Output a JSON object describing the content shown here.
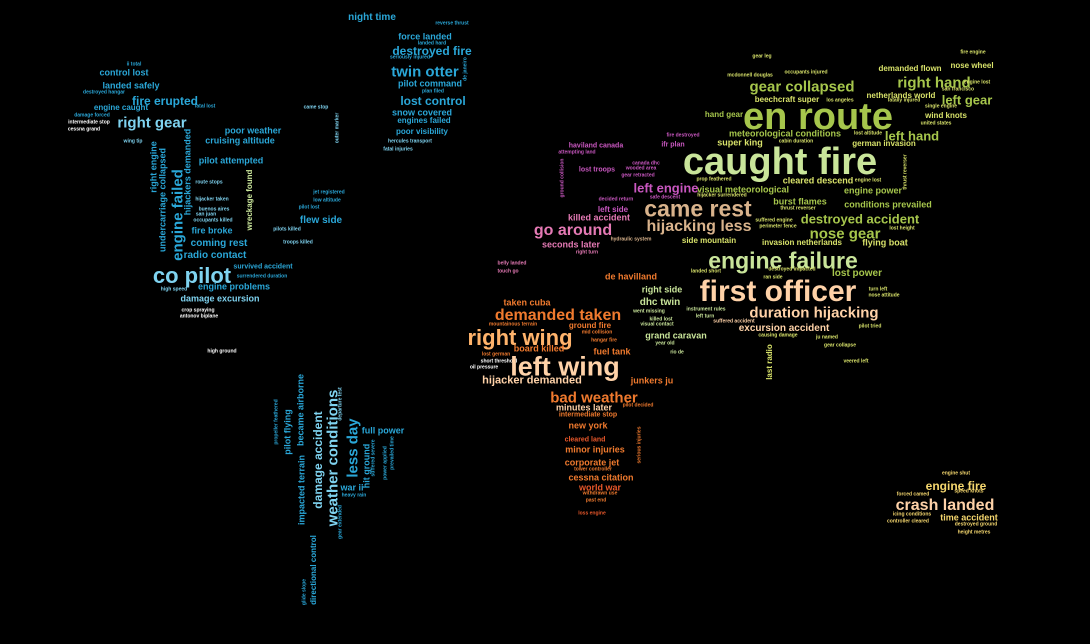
{
  "colors": {
    "background": "#000000",
    "blue": "#2aa7d8",
    "lightblue": "#7fd3f0",
    "white": "#ffffff",
    "green": "#a6c64c",
    "lightgreen": "#c9e59a",
    "yellowgreen": "#d8e26a",
    "purple": "#c957c0",
    "pink": "#e57ab5",
    "tan": "#d9b38c",
    "orange": "#f07a2e",
    "lightorange": "#ffb36b",
    "peach": "#ffd2a8",
    "yellow": "#f5d76e",
    "darkorange": "#e8572a"
  },
  "words": {
    "w1": "night time",
    "w2": "reverse thrust",
    "w3": "force landed",
    "w4": "landed hard",
    "w5": "destroyed fire",
    "w6": "seriously injured",
    "w7": "twin otter",
    "w8": "de janeiro",
    "w9": "pilot command",
    "w10": "plan filed",
    "w11": "lost control",
    "w12": "snow covered",
    "w13": "engines failed",
    "w14": "poor visibility",
    "w15": "hercules transport",
    "w16": "fatal injuries",
    "w17": "outer marker",
    "w18": "came stop",
    "w19": "control lost",
    "w20": "landed safely",
    "w21": "destroyed hangar",
    "w22": "fire erupted",
    "w23": "engine caught",
    "w24": "fatal lost",
    "w25": "damage forced",
    "w26": "right gear",
    "w27": "intermediate stop",
    "w28": "cessna grand",
    "w29": "poor weather",
    "w30": "cruising altitude",
    "w31": "wing tip",
    "w32": "right engine",
    "w33": "undercarriage collapsed",
    "w34": "engine failed",
    "w35": "hijackers demanded",
    "w36": "pilot attempted",
    "w37": "route stops",
    "w38": "hijacker taken",
    "w39": "buenos aires",
    "w40": "san juan",
    "w41": "occupants killed",
    "w42": "wreckage found",
    "w43": "jet registered",
    "w44": "low altitude",
    "w45": "pilot lost",
    "w46": "flew side",
    "w47": "fire broke",
    "w48": "pilots killed",
    "w49": "coming rest",
    "w50": "troops killed",
    "w51": "radio contact",
    "w52": "co pilot",
    "w53": "survived accident",
    "w54": "surrendered duration",
    "w55": "engine problems",
    "w56": "high speed",
    "w57": "damage excursion",
    "w58": "crop spraying",
    "w59": "antonov biplane",
    "w60": "high ground",
    "w61": "propeller feathered",
    "w62": "pilot flying",
    "w63": "impacted terrain",
    "w64": "became airborne",
    "w65": "damage accident",
    "w66": "weather conditions",
    "w67": "departure test",
    "w68": "less day",
    "w69": "hit ground",
    "w70": "suffered severe",
    "w71": "full power",
    "w72": "power applied",
    "w73": "prevailed time",
    "w74": "war ii",
    "w75": "heavy rain",
    "w76": "directional control",
    "w77": "gear extended",
    "w78": "glide slope",
    "w79": "en route",
    "w80": "caught fire",
    "w81": "gear collapsed",
    "w82": "right hand",
    "w83": "left gear",
    "w84": "nose wheel",
    "w85": "demanded flown",
    "w86": "gear leg",
    "w87": "mcdonnell douglas",
    "w88": "occupants injured",
    "w89": "beechcraft super",
    "w90": "los angeles",
    "w91": "netherlands world",
    "w92": "fatally injured",
    "w93": "single engine",
    "w94": "wind knots",
    "w95": "united states",
    "w96": "san francisco",
    "w97": "fire engine",
    "w98": "engine lost",
    "w99": "hand gear",
    "w100": "meteorological conditions",
    "w101": "left hand",
    "w102": "super king",
    "w103": "cabin duration",
    "w104": "lost altitude",
    "w105": "german invasion",
    "w106": "haviland canada",
    "w107": "attempting land",
    "w108": "fire destroyed",
    "w109": "ifr plan",
    "w110": "cleared descend",
    "w111": "engine power",
    "w112": "canada dhc",
    "w113": "wooded area",
    "w114": "gear retracted",
    "w115": "prop feathered",
    "w116": "lost troops",
    "w117": "ground collision",
    "w118": "left engine",
    "w119": "visual meteorological",
    "w120": "came rest",
    "w121": "burst flames",
    "w122": "conditions prevailed",
    "w123": "decided return",
    "w124": "safe descent",
    "w125": "hijacker surrendered",
    "w126": "thrust reverser",
    "w127": "engine lost",
    "w128": "left side",
    "w129": "suffered engine",
    "w130": "destroyed accident",
    "w131": "killed accident",
    "w132": "hijacking less",
    "w133": "perimeter fence",
    "w134": "lost height",
    "w135": "go around",
    "w136": "hydraulic system",
    "w137": "nose gear",
    "w138": "invasion netherlands",
    "w139": "flying boat",
    "w140": "side mountain",
    "w141": "seconds later",
    "w142": "right turn",
    "w143": "engine failure",
    "w144": "belly landed",
    "w145": "touch go",
    "w146": "de havilland",
    "w147": "landed short",
    "w148": "destroyed impacted",
    "w149": "ran side",
    "w150": "lost power",
    "w151": "first officer",
    "w152": "turn left",
    "w153": "nose attitude",
    "w154": "right side",
    "w155": "taken cuba",
    "w156": "dhc twin",
    "w157": "duration hijacking",
    "w158": "went missing",
    "w159": "instrument rules",
    "w160": "demanded taken",
    "w161": "killed lost",
    "w162": "left turn",
    "w163": "suffered accident",
    "w164": "visual contact",
    "w165": "mountainous terrain",
    "w166": "ground fire",
    "w167": "mid collision",
    "w168": "excursion accident",
    "w169": "causing damage",
    "w170": "pilot tried",
    "w171": "right wing",
    "w172": "hangar fire",
    "w173": "grand caravan",
    "w174": "ju named",
    "w175": "board killed",
    "w176": "year old",
    "w177": "gear collapse",
    "w178": "last radio",
    "w179": "lost german",
    "w180": "fuel tank",
    "w181": "rio de",
    "w182": "short threshold",
    "w183": "left wing",
    "w184": "veered left",
    "w185": "oil pressure",
    "w186": "hijacker demanded",
    "w187": "junkers ju",
    "w188": "bad weather",
    "w189": "minutes later",
    "w190": "pilot decided",
    "w191": "intermediate stop",
    "w192": "new york",
    "w193": "serious injuries",
    "w194": "cleared land",
    "w195": "minor injuries",
    "w196": "corporate jet",
    "w197": "tower controller",
    "w198": "cessna citation",
    "w199": "world war",
    "w200": "withdrawn use",
    "w201": "past end",
    "w202": "loss engine",
    "w203": "engine shut",
    "w204": "engine fire",
    "w205": "forced camed",
    "w206": "speed knots",
    "w207": "crash landed",
    "w208": "icing conditions",
    "w209": "time accident",
    "w210": "controller cleared",
    "w211": "destroyed ground",
    "w212": "height metres",
    "w213": "ii total"
  }
}
